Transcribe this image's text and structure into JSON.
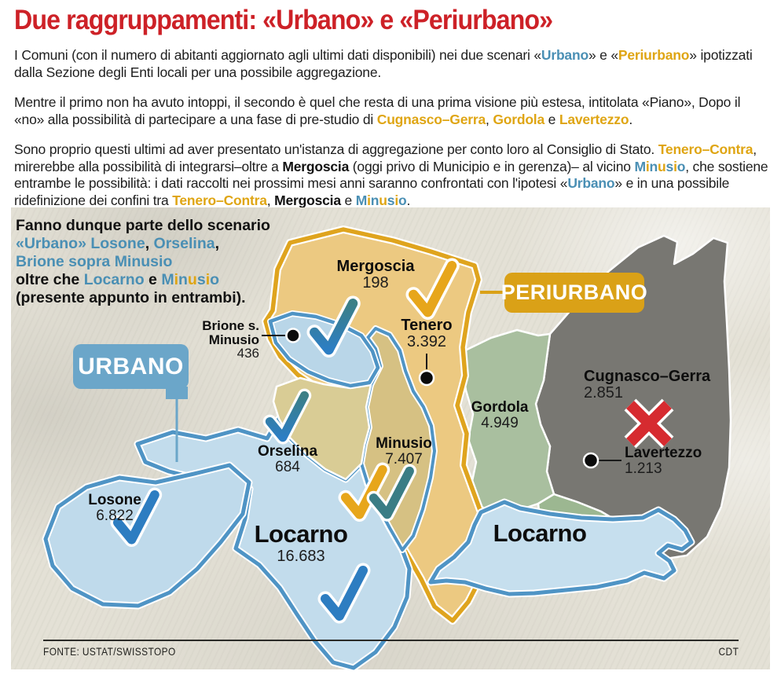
{
  "header": {
    "title": "Due raggruppamenti: «Urbano» e «Periurbano»",
    "paragraphs": [
      [
        {
          "t": "I Comuni (con il numero di abitanti aggiornato agli ultimi dati disponibili) nei due scenari «"
        },
        {
          "t": "Urbano",
          "c": "blue"
        },
        {
          "t": "» e «"
        },
        {
          "t": "Periurbano",
          "c": "gold"
        },
        {
          "t": "» ipotizzati dalla Sezione degli Enti locali per una possibile aggregazione."
        }
      ],
      [
        {
          "t": "Mentre il primo non ha avuto intoppi, il secondo è quel che resta di una prima visione più estesa, intitolata «Piano», Dopo il «no» alla possibilità di partecipare a una fase di pre-studio di "
        },
        {
          "t": "Cugnasco–Gerra",
          "c": "gold"
        },
        {
          "t": ", "
        },
        {
          "t": "Gordola",
          "c": "gold"
        },
        {
          "t": " e "
        },
        {
          "t": "Lavertezzo",
          "c": "gold"
        },
        {
          "t": "."
        }
      ],
      [
        {
          "t": "Sono proprio questi ultimi ad aver presentato un'istanza di aggregazione per conto loro al Consiglio di Stato. "
        },
        {
          "t": "Tenero–Contra",
          "c": "gold"
        },
        {
          "t": ", mirerebbe alla possibilità di integrarsi–oltre a "
        },
        {
          "t": "Mergoscia",
          "c": "bb"
        },
        {
          "t": " (oggi privo di Municipio e in gerenza)– al vicino "
        },
        {
          "t": "M",
          "c": "blue"
        },
        {
          "t": "i",
          "c": "gold"
        },
        {
          "t": "n",
          "c": "blue"
        },
        {
          "t": "u",
          "c": "gold"
        },
        {
          "t": "s",
          "c": "blue"
        },
        {
          "t": "i",
          "c": "gold"
        },
        {
          "t": "o",
          "c": "blue"
        },
        {
          "t": ", che sostiene entrambe le possibilità: i dati raccolti nei prossimi mesi anni saranno confrontati con l'ipotesi «"
        },
        {
          "t": "Urbano",
          "c": "blue"
        },
        {
          "t": "» e in una possibile ridefinizione dei confini tra "
        },
        {
          "t": "Tenero–Contra",
          "c": "gold"
        },
        {
          "t": ", "
        },
        {
          "t": "Mergoscia",
          "c": "bb"
        },
        {
          "t": " e "
        },
        {
          "t": "M",
          "c": "blue"
        },
        {
          "t": "i",
          "c": "gold"
        },
        {
          "t": "n",
          "c": "blue"
        },
        {
          "t": "u",
          "c": "gold"
        },
        {
          "t": "s",
          "c": "blue"
        },
        {
          "t": "i",
          "c": "gold"
        },
        {
          "t": "o",
          "c": "blue"
        },
        {
          "t": "."
        }
      ]
    ]
  },
  "map": {
    "note": [
      {
        "t": "Fanno dunque parte dello scenario\n",
        "c": "bb"
      },
      {
        "t": "«Urbano» Losone",
        "c": "blue"
      },
      {
        "t": ", ",
        "c": "bb"
      },
      {
        "t": "Orselina",
        "c": "blue"
      },
      {
        "t": ",\n",
        "c": "bb"
      },
      {
        "t": "Brione sopra Minusio\n",
        "c": "blue"
      },
      {
        "t": "oltre che ",
        "c": "bb"
      },
      {
        "t": "Locarno",
        "c": "blue"
      },
      {
        "t": " e ",
        "c": "bb"
      },
      {
        "t": "M",
        "c": "blue"
      },
      {
        "t": "i",
        "c": "gold"
      },
      {
        "t": "n",
        "c": "blue"
      },
      {
        "t": "u",
        "c": "gold"
      },
      {
        "t": "s",
        "c": "blue"
      },
      {
        "t": "i",
        "c": "gold"
      },
      {
        "t": "o",
        "c": "blue"
      },
      {
        "t": "\n(presente appunto in entrambi).",
        "c": "bb"
      }
    ],
    "badges": {
      "urbano": "URBANO",
      "periurbano": "PERIURBANO"
    },
    "labels": [
      {
        "name": "Mergoscia",
        "value": "198"
      },
      {
        "name": "Tenero",
        "value": "3.392"
      },
      {
        "name": "Brione s.\nMinusio",
        "value": "436"
      },
      {
        "name": "Cugnasco–Gerra",
        "value": "2.851"
      },
      {
        "name": "Gordola",
        "value": "4.949"
      },
      {
        "name": "Orselina",
        "value": "684"
      },
      {
        "name": "Minusio",
        "value": "7.407"
      },
      {
        "name": "Lavertezzo",
        "value": "1.213"
      },
      {
        "name": "Losone",
        "value": "6.822"
      },
      {
        "name": "Locarno",
        "value": "16.683"
      },
      {
        "name": "Locarno",
        "value": ""
      }
    ],
    "icons": {
      "check": "approval checkmark",
      "cross": "rejection cross",
      "dot": "location dot"
    }
  },
  "colors": {
    "title_red": "#cd2127",
    "urbano_blue_text": "#4a8fb4",
    "periurbano_gold_text": "#dfa513",
    "urbano_badge": "#6ba6c9",
    "periurbano_badge": "#daa117",
    "urbano_region_fill": "#c2dcec",
    "urbano_region_stroke": "#4f94c5",
    "periurbano_region_fill": "#ecc981",
    "periurbano_region_stroke": "#dfa41e",
    "gordola_green": "#a9bf9f",
    "cugnasco_gray": "#787772",
    "minusio_khaki": "#d6c183",
    "check_blue": "#2d7dc1",
    "check_gold": "#e7a61b",
    "check_teal": "#3a7d85",
    "cross_red": "#d62b30",
    "map_background": "#e4e1d6"
  },
  "footer": {
    "source": "FONTE: USTAT/SWISSTOPO",
    "credit": "CDT"
  }
}
